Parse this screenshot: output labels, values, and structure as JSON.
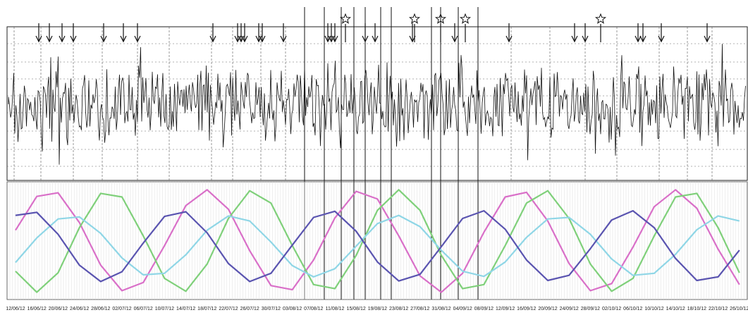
{
  "chart_data": {
    "type": "line",
    "categories": [
      "12/06/12",
      "16/06/12",
      "20/06/12",
      "24/06/12",
      "28/06/12",
      "02/07/12",
      "06/07/12",
      "10/07/12",
      "14/07/12",
      "18/07/12",
      "22/07/12",
      "26/07/12",
      "30/07/12",
      "03/08/12",
      "07/08/12",
      "11/08/12",
      "15/08/12",
      "19/08/12",
      "23/08/12",
      "27/08/12",
      "31/08/12",
      "04/09/12",
      "08/09/12",
      "12/09/12",
      "16/09/12",
      "20/09/12",
      "24/09/12",
      "28/09/12",
      "02/10/12",
      "06/10/12",
      "10/10/12",
      "14/10/12",
      "18/10/12",
      "22/10/12",
      "26/10/12"
    ],
    "ylim": [
      -1.1,
      1.1
    ],
    "series": [
      {
        "color": "#d96fc8",
        "values": [
          0.21,
          0.87,
          0.94,
          0.36,
          -0.47,
          -0.97,
          -0.81,
          -0.09,
          0.69,
          1.0,
          0.62,
          -0.19,
          -0.87,
          -0.95,
          -0.37,
          0.45,
          0.97,
          0.82,
          0.1,
          -0.68,
          -1.0,
          -0.63,
          0.17,
          0.86,
          0.95,
          0.39,
          -0.44,
          -0.97,
          -0.83,
          -0.12,
          0.67,
          1.0,
          0.64,
          -0.16,
          -0.85
        ]
      },
      {
        "color": "#7fd07a",
        "values": [
          -0.59,
          -1.0,
          -0.62,
          0.26,
          0.93,
          0.86,
          0.1,
          -0.73,
          -0.98,
          -0.45,
          0.44,
          0.98,
          0.74,
          -0.09,
          -0.85,
          -0.93,
          -0.28,
          0.6,
          1.0,
          0.6,
          -0.28,
          -0.93,
          -0.85,
          -0.09,
          0.74,
          0.98,
          0.44,
          -0.45,
          -0.98,
          -0.73,
          0.1,
          0.86,
          0.93,
          0.26,
          -0.62
        ]
      },
      {
        "color": "#8fd6e6",
        "values": [
          -0.42,
          0.06,
          0.43,
          0.47,
          0.15,
          -0.33,
          -0.66,
          -0.63,
          -0.27,
          0.21,
          0.49,
          0.39,
          -0.02,
          -0.48,
          -0.7,
          -0.54,
          -0.1,
          0.34,
          0.5,
          0.28,
          -0.18,
          -0.59,
          -0.69,
          -0.41,
          0.07,
          0.43,
          0.46,
          0.13,
          -0.35,
          -0.67,
          -0.63,
          -0.26,
          0.22,
          0.49,
          0.39
        ]
      },
      {
        "color": "#5a54b0",
        "values": [
          0.5,
          0.56,
          0.13,
          -0.47,
          -0.79,
          -0.6,
          -0.04,
          0.48,
          0.57,
          0.16,
          -0.44,
          -0.79,
          -0.63,
          -0.08,
          0.46,
          0.58,
          0.19,
          -0.41,
          -0.78,
          -0.65,
          -0.11,
          0.44,
          0.59,
          0.23,
          -0.37,
          -0.77,
          -0.67,
          -0.15,
          0.41,
          0.59,
          0.26,
          -0.34,
          -0.77,
          -0.7,
          -0.18
        ]
      }
    ]
  }
}
